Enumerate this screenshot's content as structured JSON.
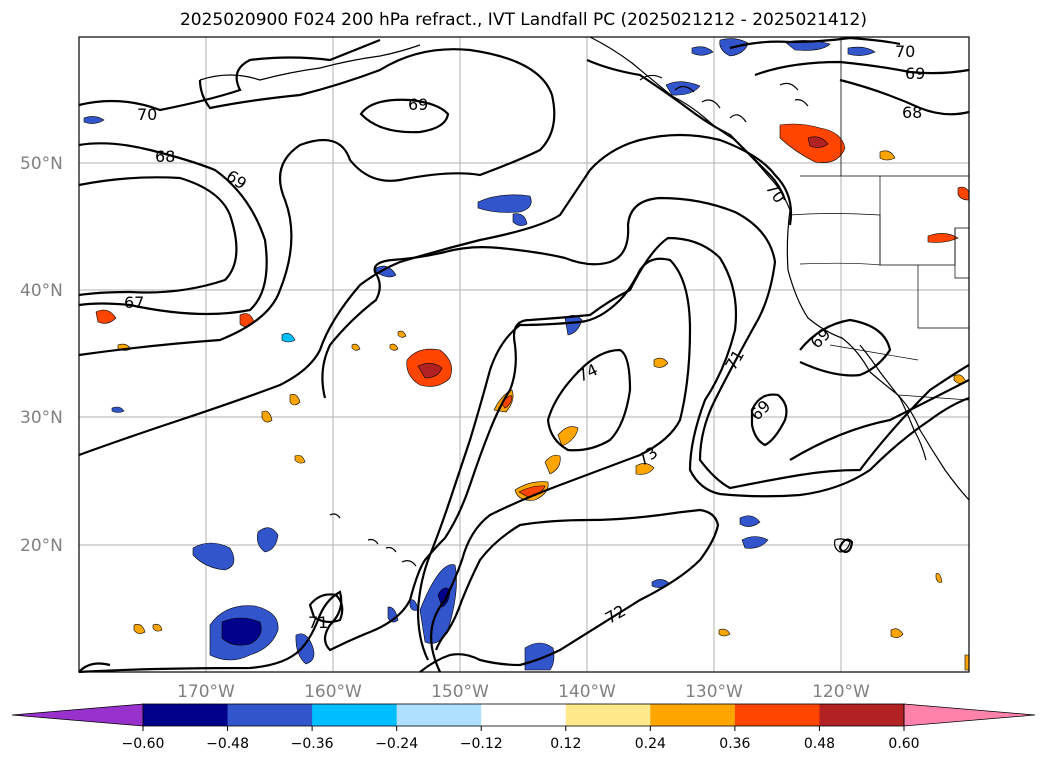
{
  "title": "2025020900 F024 200 hPa refract., IVT Landfall PC (2025021212 - 2025021412)",
  "lat_labels": [
    "50°N",
    "40°N",
    "30°N",
    "20°N"
  ],
  "lon_labels": [
    "170°W",
    "160°W",
    "150°W",
    "140°W",
    "130°W",
    "120°W"
  ],
  "contour_labels": [
    "70",
    "68",
    "69",
    "67",
    "69",
    "70",
    "69",
    "68",
    "70",
    "74",
    "71",
    "69",
    "69",
    "73",
    "72",
    "71"
  ],
  "colorbar": {
    "ticks": [
      "−0.60",
      "−0.48",
      "−0.36",
      "−0.24",
      "−0.12",
      "0.12",
      "0.24",
      "0.36",
      "0.48",
      "0.60"
    ],
    "colors": [
      "#9932cc",
      "#00008b",
      "#3355cc",
      "#00bfff",
      "#b0e0ff",
      "#ffffff",
      "#ffe98a",
      "#ffa500",
      "#ff4500",
      "#b22222",
      "#ff82aa"
    ]
  }
}
